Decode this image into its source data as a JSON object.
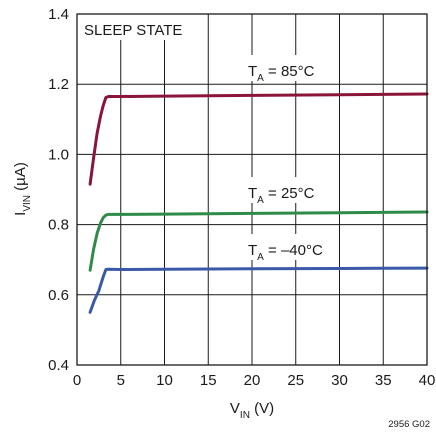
{
  "chart_data": {
    "type": "line",
    "corner_label": "SLEEP STATE",
    "xlabel_main": "V",
    "xlabel_sub": "IN",
    "xlabel_tail": " (V)",
    "ylabel_main": "I",
    "ylabel_sub": "VIN",
    "ylabel_tail": " (µA)",
    "footnote": "2956 G02",
    "xlim": [
      0,
      40
    ],
    "ylim": [
      0.4,
      1.4
    ],
    "xticks": [
      "0",
      "5",
      "10",
      "15",
      "20",
      "25",
      "30",
      "35",
      "40"
    ],
    "yticks": [
      "0.4",
      "0.6",
      "0.8",
      "1.0",
      "1.2",
      "1.4"
    ],
    "grid": true,
    "series": [
      {
        "name": "T_A = 85°C",
        "label_main": "T",
        "label_sub": "A",
        "label_tail": " = 85°C",
        "color": "#8b1538",
        "x": [
          1.5,
          1.9,
          2.3,
          2.7,
          3.0,
          3.3,
          3.6,
          5,
          10,
          20,
          30,
          40
        ],
        "y": [
          0.915,
          0.99,
          1.06,
          1.11,
          1.14,
          1.162,
          1.165,
          1.165,
          1.166,
          1.168,
          1.17,
          1.172
        ]
      },
      {
        "name": "T_A = 25°C",
        "label_main": "T",
        "label_sub": "A",
        "label_tail": " = 25°C",
        "color": "#2e8b4a",
        "x": [
          1.5,
          1.9,
          2.3,
          2.7,
          3.0,
          3.3,
          3.6,
          5,
          10,
          20,
          30,
          40
        ],
        "y": [
          0.67,
          0.73,
          0.775,
          0.805,
          0.82,
          0.827,
          0.829,
          0.829,
          0.83,
          0.832,
          0.834,
          0.836
        ]
      },
      {
        "name": "T_A = –40°C",
        "label_main": "T",
        "label_sub": "A",
        "label_tail": " = –40°C",
        "color": "#3a5aa8",
        "x": [
          1.5,
          2.0,
          2.5,
          3.0,
          3.3,
          3.6,
          5,
          10,
          20,
          30,
          40
        ],
        "y": [
          0.55,
          0.585,
          0.612,
          0.652,
          0.672,
          0.673,
          0.672,
          0.673,
          0.674,
          0.675,
          0.676
        ]
      }
    ]
  }
}
